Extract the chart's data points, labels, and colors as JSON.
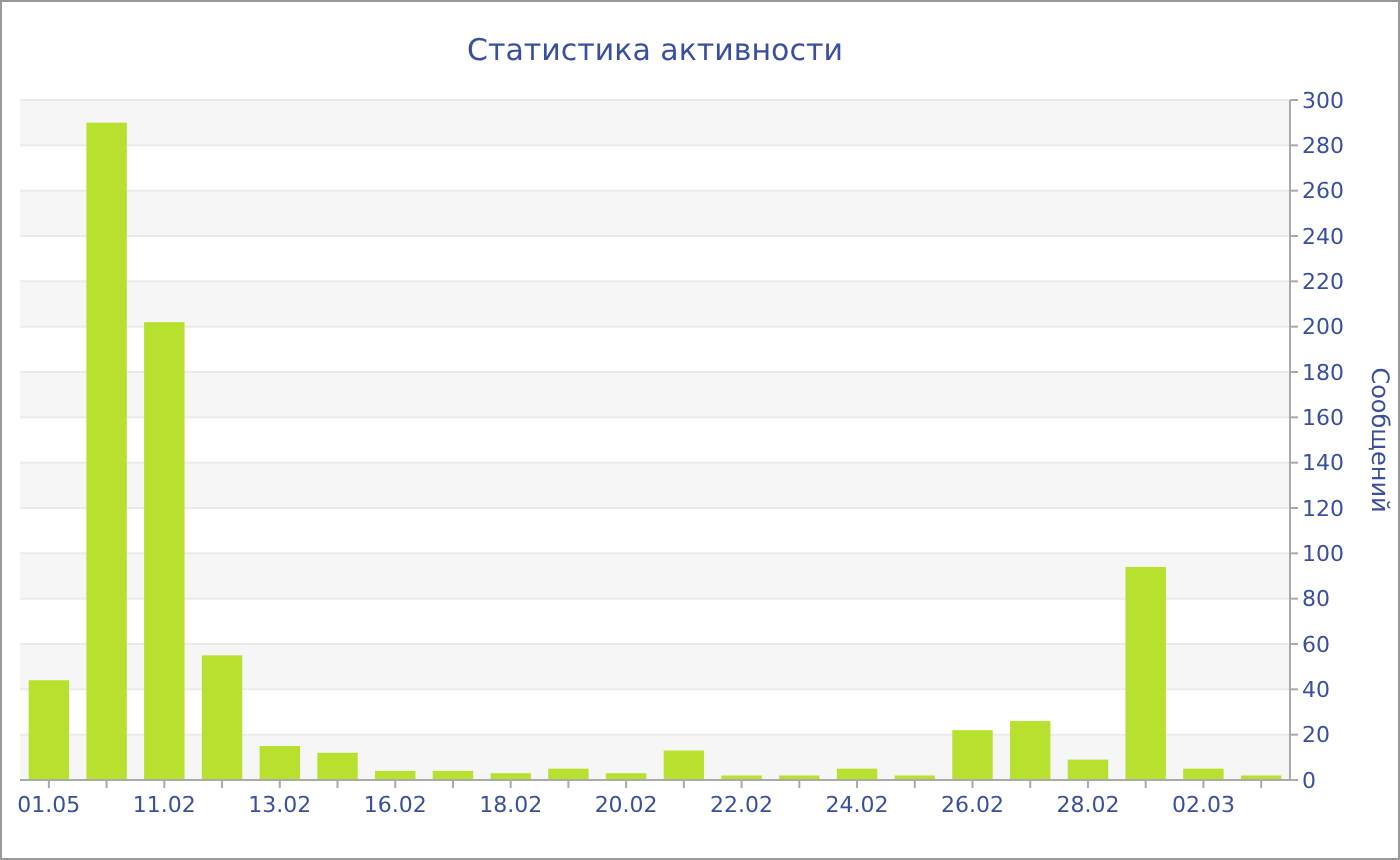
{
  "chart_data": {
    "type": "bar",
    "title": "Статистика активности",
    "ylabel": "Сообщений",
    "categories": [
      "01.05",
      null,
      "11.02",
      null,
      "13.02",
      null,
      "16.02",
      null,
      "18.02",
      null,
      "20.02",
      null,
      "22.02",
      null,
      "24.02",
      null,
      "26.02",
      null,
      "28.02",
      null,
      "02.03",
      null
    ],
    "values": [
      44,
      290,
      202,
      55,
      15,
      12,
      4,
      4,
      3,
      5,
      3,
      13,
      2,
      2,
      5,
      2,
      22,
      26,
      9,
      94,
      5,
      2
    ],
    "color": "#b8e02e",
    "ylim": [
      0,
      300
    ],
    "yticks": [
      0,
      20,
      40,
      60,
      80,
      100,
      120,
      140,
      160,
      180,
      200,
      220,
      240,
      260,
      280,
      300
    ],
    "grid": "y"
  }
}
